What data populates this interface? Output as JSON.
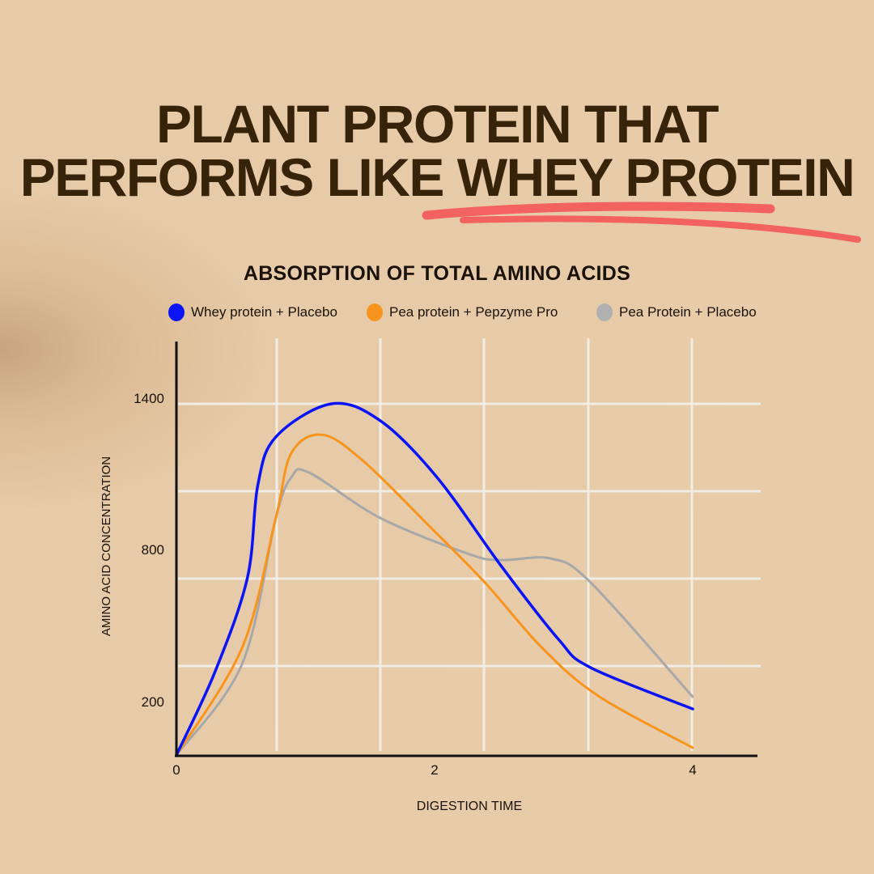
{
  "headline": {
    "line1": "PLANT PROTEIN THAT",
    "line2": "PERFORMS LIKE WHEY PROTEIN",
    "underline_color": "#f26260",
    "text_color": "#36230a"
  },
  "chart_data": {
    "type": "line",
    "title": "ABSORPTION OF TOTAL AMINO ACIDS",
    "xlabel": "DIGESTION TIME",
    "ylabel": "AMINO ACID CONCENTRATION",
    "xlim": [
      0,
      4.5
    ],
    "ylim": [
      0,
      1650
    ],
    "x_ticks": [
      "0",
      "2",
      "4"
    ],
    "y_ticks": [
      "1400",
      "800",
      "200"
    ],
    "grid": true,
    "legend_position": "top",
    "series": [
      {
        "name": "Whey protein + Placebo",
        "color": "#0a14f5",
        "points": [
          [
            0,
            0
          ],
          [
            0.3,
            330
          ],
          [
            0.55,
            700
          ],
          [
            0.63,
            1064
          ],
          [
            0.77,
            1256
          ],
          [
            1.2,
            1387
          ],
          [
            1.58,
            1320
          ],
          [
            2.02,
            1096
          ],
          [
            2.52,
            744
          ],
          [
            2.96,
            457
          ],
          [
            3.21,
            345
          ],
          [
            4,
            182
          ]
        ]
      },
      {
        "name": "Pea protein + Pepzyme Pro",
        "color": "#f7941d",
        "points": [
          [
            0,
            0
          ],
          [
            0.51,
            425
          ],
          [
            0.77,
            936
          ],
          [
            0.89,
            1192
          ],
          [
            1.13,
            1265
          ],
          [
            1.45,
            1160
          ],
          [
            1.96,
            904
          ],
          [
            2.39,
            681
          ],
          [
            2.83,
            425
          ],
          [
            3.27,
            233
          ],
          [
            4,
            29
          ]
        ]
      },
      {
        "name": "Pea Protein + Placebo",
        "color": "#a8a8a8",
        "points": [
          [
            0,
            0
          ],
          [
            0.51,
            361
          ],
          [
            0.77,
            936
          ],
          [
            0.89,
            1096
          ],
          [
            1.03,
            1115
          ],
          [
            1.58,
            936
          ],
          [
            2.27,
            793
          ],
          [
            2.52,
            770
          ],
          [
            2.9,
            776
          ],
          [
            3.21,
            681
          ],
          [
            4,
            230
          ]
        ]
      }
    ]
  }
}
